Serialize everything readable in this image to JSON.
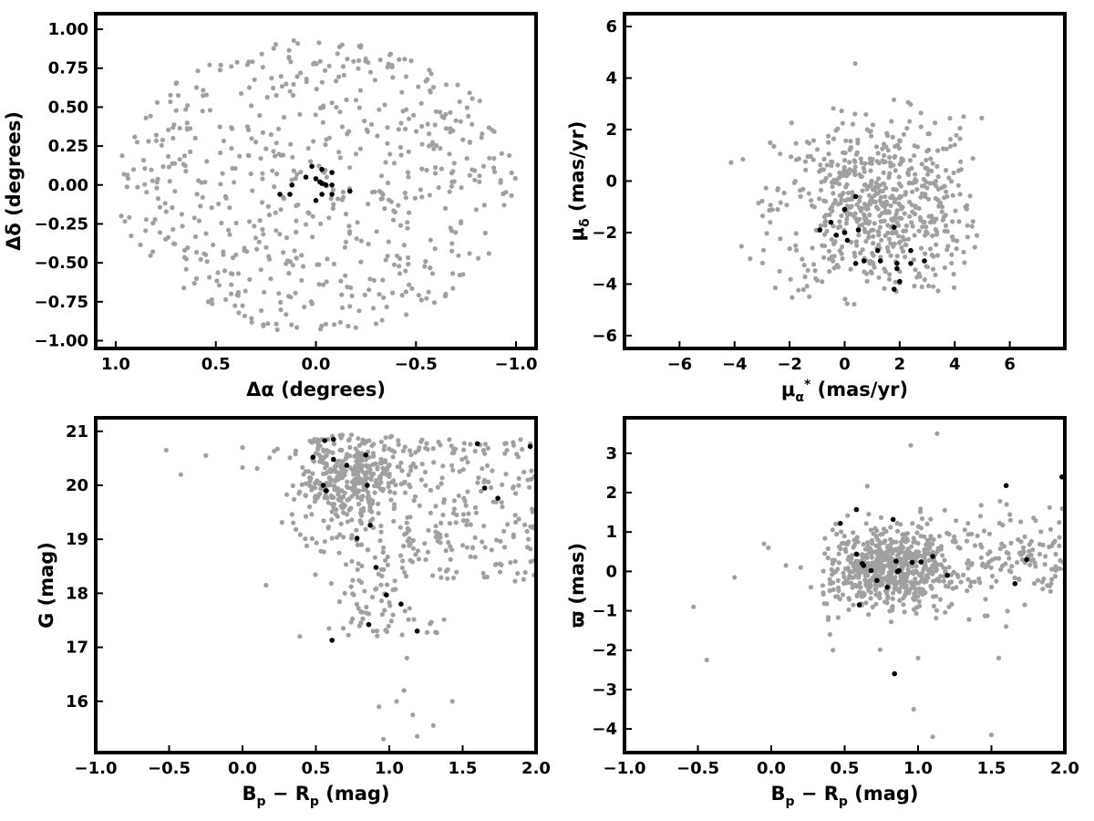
{
  "chart_data": [
    {
      "type": "scatter",
      "xlabel": "Δα (degrees)",
      "ylabel": "Δδ (degrees)",
      "xlim": [
        1.1,
        -1.1
      ],
      "ylim": [
        -1.05,
        1.1
      ],
      "x_reversed": true,
      "xticks": [
        1.0,
        0.5,
        0.0,
        -0.5,
        -1.0
      ],
      "xtick_labels": [
        "1.0",
        "0.5",
        "0.0",
        "−0.5",
        "−1.0"
      ],
      "yticks": [
        1.0,
        0.75,
        0.5,
        0.25,
        0.0,
        -0.25,
        -0.5,
        -0.75,
        -1.0
      ],
      "ytick_labels": [
        "1.00",
        "0.75",
        "0.50",
        "0.25",
        "0.00",
        "−0.25",
        "−0.50",
        "−0.75",
        "−1.00"
      ],
      "series": [
        {
          "color": "#a0a0a0",
          "distribution": {
            "shape": "disk",
            "n": 620,
            "center": [
              0,
              0
            ],
            "radius": [
              1.0,
              0.95
            ]
          }
        },
        {
          "color": "#000000",
          "points": [
            [
              0.02,
              0.12
            ],
            [
              -0.03,
              0.1
            ],
            [
              -0.08,
              0.08
            ],
            [
              0.05,
              0.05
            ],
            [
              0.0,
              0.04
            ],
            [
              -0.02,
              0.02
            ],
            [
              -0.05,
              0.0
            ],
            [
              -0.08,
              0.0
            ],
            [
              0.12,
              0.0
            ],
            [
              0.18,
              -0.06
            ],
            [
              0.13,
              -0.06
            ],
            [
              -0.03,
              -0.06
            ],
            [
              0.0,
              -0.1
            ],
            [
              -0.08,
              -0.06
            ],
            [
              -0.17,
              -0.04
            ],
            [
              -0.03,
              0.01
            ]
          ]
        }
      ]
    },
    {
      "type": "scatter",
      "xlabel": "μα* (mas/yr)",
      "ylabel": "μδ (mas/yr)",
      "xlim": [
        -8,
        8
      ],
      "ylim": [
        -6.5,
        6.5
      ],
      "xticks": [
        -6,
        -4,
        -2,
        0,
        2,
        4,
        6
      ],
      "xtick_labels": [
        "−6",
        "−4",
        "−2",
        "0",
        "2",
        "4",
        "6"
      ],
      "yticks": [
        6,
        4,
        2,
        0,
        -2,
        -4,
        -6
      ],
      "ytick_labels": [
        "6",
        "4",
        "2",
        "0",
        "−2",
        "−4",
        "−6"
      ],
      "series": [
        {
          "color": "#a0a0a0",
          "distribution": {
            "shape": "blob",
            "n": 650,
            "center": [
              1.2,
              -1.0
            ],
            "spread": [
              2.2,
              2.0
            ],
            "x_range": [
              -4.2,
              5.0
            ],
            "y_range": [
              -4.8,
              4.8
            ]
          }
        },
        {
          "color": "#000000",
          "points": [
            [
              0.4,
              -0.6
            ],
            [
              0.0,
              -1.1
            ],
            [
              -0.5,
              -1.6
            ],
            [
              -0.9,
              -1.9
            ],
            [
              -0.3,
              -2.1
            ],
            [
              0.1,
              -2.3
            ],
            [
              0.0,
              -2.0
            ],
            [
              0.5,
              -1.9
            ],
            [
              1.8,
              -1.8
            ],
            [
              1.2,
              -2.7
            ],
            [
              2.4,
              -2.7
            ],
            [
              0.7,
              -3.1
            ],
            [
              0.4,
              -3.2
            ],
            [
              1.3,
              -3.1
            ],
            [
              1.9,
              -3.2
            ],
            [
              1.9,
              -3.4
            ],
            [
              2.4,
              -3.2
            ],
            [
              2.0,
              -3.9
            ],
            [
              1.8,
              -4.2
            ],
            [
              2.9,
              -3.1
            ]
          ]
        }
      ]
    },
    {
      "type": "scatter",
      "xlabel": "Bp − Rp (mag)",
      "ylabel": "G (mag)",
      "xlim": [
        -1.0,
        2.0
      ],
      "ylim": [
        15.05,
        21.25
      ],
      "xticks": [
        -1.0,
        -0.5,
        0.0,
        0.5,
        1.0,
        1.5,
        2.0
      ],
      "xtick_labels": [
        "−1.0",
        "−0.5",
        "0.0",
        "0.5",
        "1.0",
        "1.5",
        "2.0"
      ],
      "yticks": [
        21,
        20,
        19,
        18,
        17,
        16
      ],
      "ytick_labels": [
        "21",
        "20",
        "19",
        "18",
        "17",
        "16"
      ],
      "series": [
        {
          "color": "#a0a0a0",
          "distribution": {
            "shape": "cmd",
            "n": 720
          },
          "points": [
            [
              -0.52,
              20.65
            ],
            [
              -0.42,
              20.2
            ],
            [
              -0.25,
              20.55
            ],
            [
              0.0,
              20.7
            ],
            [
              0.0,
              20.33
            ],
            [
              0.1,
              20.31
            ],
            [
              0.16,
              18.15
            ],
            [
              0.39,
              17.2
            ],
            [
              0.59,
              17.35
            ],
            [
              0.93,
              15.9
            ],
            [
              0.96,
              15.3
            ],
            [
              1.05,
              16.0
            ],
            [
              1.1,
              16.2
            ],
            [
              1.12,
              16.8
            ],
            [
              1.16,
              15.75
            ],
            [
              1.19,
              15.35
            ],
            [
              1.3,
              15.55
            ],
            [
              1.43,
              16.0
            ],
            [
              1.99,
              19.25
            ]
          ]
        },
        {
          "color": "#000000",
          "points": [
            [
              0.56,
              20.83
            ],
            [
              0.62,
              20.85
            ],
            [
              0.48,
              20.52
            ],
            [
              0.62,
              20.48
            ],
            [
              0.84,
              20.56
            ],
            [
              0.71,
              20.37
            ],
            [
              0.55,
              20.0
            ],
            [
              0.57,
              19.9
            ],
            [
              0.85,
              20.0
            ],
            [
              0.87,
              19.26
            ],
            [
              0.78,
              19.02
            ],
            [
              0.91,
              18.48
            ],
            [
              0.98,
              17.97
            ],
            [
              1.08,
              17.8
            ],
            [
              0.86,
              17.42
            ],
            [
              1.19,
              17.3
            ],
            [
              0.61,
              17.13
            ],
            [
              1.6,
              20.77
            ],
            [
              1.65,
              19.95
            ],
            [
              1.74,
              19.76
            ],
            [
              1.96,
              20.72
            ]
          ]
        }
      ]
    },
    {
      "type": "scatter",
      "xlabel": "Bp − Rp (mag)",
      "ylabel": "ϖ (mas)",
      "xlim": [
        -1.0,
        2.0
      ],
      "ylim": [
        -4.6,
        3.9
      ],
      "xticks": [
        -1.0,
        -0.5,
        0.0,
        0.5,
        1.0,
        1.5,
        2.0
      ],
      "xtick_labels": [
        "−1.0",
        "−0.5",
        "0.0",
        "0.5",
        "1.0",
        "1.5",
        "2.0"
      ],
      "yticks": [
        3,
        2,
        1,
        0,
        -1,
        -2,
        -3,
        -4
      ],
      "ytick_labels": [
        "3",
        "2",
        "1",
        "0",
        "−1",
        "−2",
        "−3",
        "−4"
      ],
      "series": [
        {
          "color": "#a0a0a0",
          "distribution": {
            "shape": "parallax",
            "n": 800
          },
          "points": [
            [
              -0.53,
              -0.9
            ],
            [
              -0.44,
              -2.25
            ],
            [
              -0.25,
              -0.15
            ],
            [
              -0.05,
              0.7
            ],
            [
              -0.02,
              0.6
            ],
            [
              0.1,
              0.15
            ],
            [
              0.2,
              0.1
            ],
            [
              0.27,
              -0.4
            ],
            [
              0.4,
              -1.6
            ],
            [
              0.42,
              -2.0
            ],
            [
              0.95,
              3.2
            ],
            [
              0.97,
              -3.5
            ],
            [
              1.0,
              -2.2
            ],
            [
              1.1,
              -4.2
            ],
            [
              1.13,
              3.5
            ],
            [
              1.5,
              -4.15
            ],
            [
              1.55,
              -2.2
            ],
            [
              1.6,
              -1.4
            ]
          ]
        },
        {
          "color": "#000000",
          "points": [
            [
              0.47,
              1.22
            ],
            [
              0.58,
              0.44
            ],
            [
              0.6,
              -0.85
            ],
            [
              0.58,
              1.57
            ],
            [
              0.62,
              0.2
            ],
            [
              0.63,
              0.15
            ],
            [
              0.68,
              0.02
            ],
            [
              0.72,
              -0.23
            ],
            [
              0.79,
              -0.4
            ],
            [
              0.83,
              1.32
            ],
            [
              0.85,
              0.26
            ],
            [
              0.87,
              0.02
            ],
            [
              0.86,
              -0.0
            ],
            [
              0.96,
              0.23
            ],
            [
              1.02,
              0.24
            ],
            [
              1.1,
              0.38
            ],
            [
              1.2,
              -0.1
            ],
            [
              1.6,
              2.18
            ],
            [
              1.66,
              -0.31
            ],
            [
              1.74,
              0.3
            ],
            [
              1.98,
              2.4
            ],
            [
              0.84,
              -2.6
            ]
          ]
        }
      ]
    }
  ]
}
